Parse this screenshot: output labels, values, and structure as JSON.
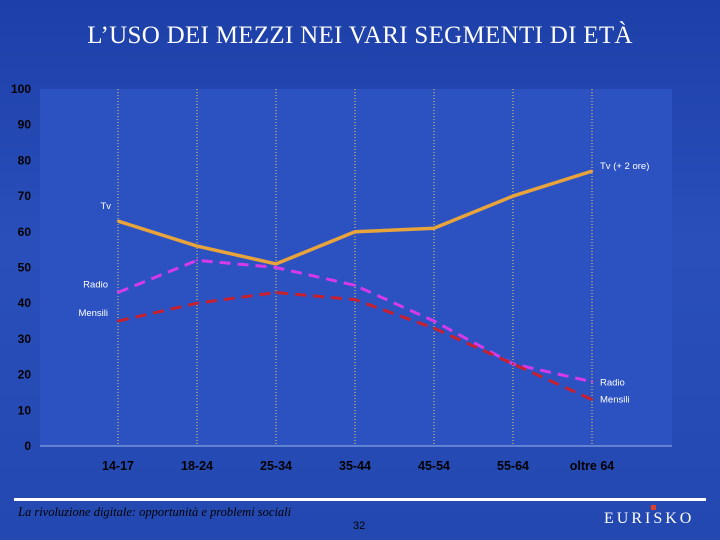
{
  "title": "L’USO DEI MEZZI NEI VARI SEGMENTI DI ETÀ",
  "footer": {
    "caption": "La rivoluzione digitale: opportunità e problemi sociali",
    "page_number": "32",
    "logo": "EURISKO"
  },
  "colors": {
    "background": "#2548b2",
    "plot_area": "#2c52c2",
    "tv": "#e8a33b",
    "radio": "#d63ae8",
    "mensili": "#c8202f",
    "logo_mark": "#e0402a"
  },
  "chart_data": {
    "type": "line",
    "title": "",
    "xlabel": "",
    "ylabel": "",
    "categories": [
      "14-17",
      "18-24",
      "25-34",
      "35-44",
      "45-54",
      "55-64",
      "oltre 64"
    ],
    "ylim": [
      0,
      100
    ],
    "yticks": [
      0,
      10,
      20,
      30,
      40,
      50,
      60,
      70,
      80,
      90,
      100
    ],
    "grid": "vertical dotted",
    "series": [
      {
        "name": "Tv",
        "values": [
          63,
          56,
          51,
          60,
          61,
          70,
          77
        ],
        "style": "solid",
        "color": "#e8a33b",
        "start_label": "Tv",
        "end_label": "Tv (+ 2 ore)"
      },
      {
        "name": "Radio",
        "values": [
          43,
          52,
          50,
          45,
          35,
          23,
          18
        ],
        "style": "dashed",
        "color": "#d63ae8",
        "start_label": "Radio",
        "end_label": "Radio"
      },
      {
        "name": "Mensili",
        "values": [
          35,
          40,
          43,
          41,
          33,
          23,
          13
        ],
        "style": "dashed",
        "color": "#c8202f",
        "start_label": "Mensili",
        "end_label": "Mensili"
      }
    ]
  }
}
